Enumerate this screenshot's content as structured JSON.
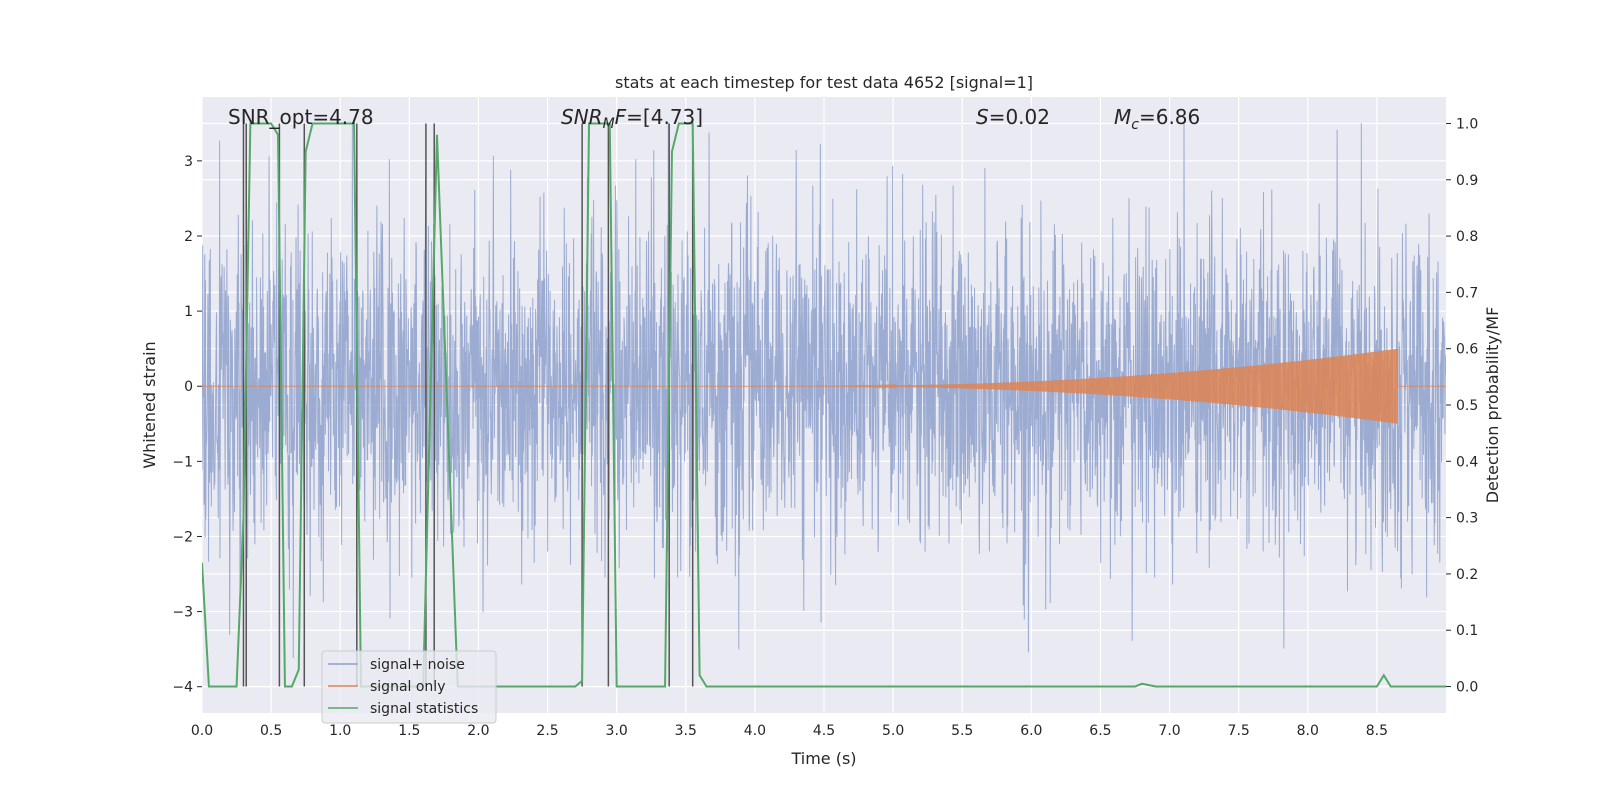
{
  "chart_data": {
    "type": "line",
    "title": "stats at each timestep for test data 4652 [signal=1]",
    "xlabel": "Time (s)",
    "ylabel_left": "Whitened strain",
    "ylabel_right": "Detection probability/MF",
    "xlim": [
      0.0,
      9.0
    ],
    "ylim_left": [
      -4.35,
      3.85
    ],
    "ylim_right": [
      -0.047,
      1.047
    ],
    "xticks": [
      0.0,
      0.5,
      1.0,
      1.5,
      2.0,
      2.5,
      3.0,
      3.5,
      4.0,
      4.5,
      5.0,
      5.5,
      6.0,
      6.5,
      7.0,
      7.5,
      8.0,
      8.5
    ],
    "xtick_labels": [
      "0.0",
      "0.5",
      "1.0",
      "1.5",
      "2.0",
      "2.5",
      "3.0",
      "3.5",
      "4.0",
      "4.5",
      "5.0",
      "5.5",
      "6.0",
      "6.5",
      "7.0",
      "7.5",
      "8.0",
      "8.5"
    ],
    "yticks_left": [
      -4,
      -3,
      -2,
      -1,
      0,
      1,
      2,
      3
    ],
    "ytick_labels_left": [
      "−4",
      "−3",
      "−2",
      "−1",
      "0",
      "1",
      "2",
      "3"
    ],
    "yticks_right": [
      0.0,
      0.1,
      0.2,
      0.3,
      0.4,
      0.5,
      0.6,
      0.7,
      0.8,
      0.9,
      1.0
    ],
    "ytick_labels_right": [
      "0.0",
      "0.1",
      "0.2",
      "0.3",
      "0.4",
      "0.5",
      "0.6",
      "0.7",
      "0.8",
      "0.9",
      "1.0"
    ],
    "annotations": {
      "snr_opt": "SNR_opt=4.78",
      "snr_mf_label": "SNR",
      "snr_mf_sub": "M",
      "snr_mf_value": "F=[4.73]",
      "s_label": "S",
      "s_value": "=0.02",
      "mc_label": "M",
      "mc_sub": "c",
      "mc_value": "=6.86"
    },
    "legend": [
      "signal+ noise",
      "signal only",
      "signal statistics"
    ],
    "series": [
      {
        "name": "signal+ noise",
        "axis": "left",
        "color": "#8da0cb",
        "description": "dense whitened noise, amplitude ~ +/-1.3 with spikes to +/-3.5"
      },
      {
        "name": "signal only",
        "axis": "left",
        "color": "#dd8452",
        "chirp_start": 4.3,
        "chirp_end": 8.65,
        "chirp_peak_amplitude": 0.5
      },
      {
        "name": "signal statistics",
        "axis": "right",
        "color": "#55a868",
        "x": [
          0.0,
          0.05,
          0.25,
          0.3,
          0.35,
          0.5,
          0.55,
          0.6,
          0.65,
          0.7,
          0.75,
          0.8,
          1.1,
          1.15,
          1.6,
          1.7,
          1.85,
          2.7,
          2.75,
          2.8,
          2.95,
          3.0,
          3.35,
          3.4,
          3.45,
          3.55,
          3.6,
          3.65,
          3.7,
          4.6,
          6.75,
          6.8,
          6.9,
          8.5,
          8.55,
          8.6,
          9.0
        ],
        "y": [
          0.22,
          0.0,
          0.0,
          0.3,
          1.0,
          1.0,
          0.98,
          0.0,
          0.0,
          0.03,
          0.95,
          1.0,
          1.0,
          0.0,
          0.0,
          0.98,
          0.0,
          0.0,
          0.01,
          1.0,
          1.0,
          0.0,
          0.0,
          0.95,
          1.0,
          1.0,
          0.02,
          0.0,
          0.0,
          0.0,
          0.0,
          0.005,
          0.0,
          0.0,
          0.02,
          0.0,
          0.0
        ]
      },
      {
        "name": "markers",
        "axis": "right",
        "color": "#555555",
        "description": "vertical marker lines spanning 0 to 1",
        "x": [
          0.3,
          0.32,
          0.56,
          0.74,
          1.12,
          1.62,
          1.68,
          2.75,
          2.94,
          3.38,
          3.55
        ]
      }
    ]
  }
}
